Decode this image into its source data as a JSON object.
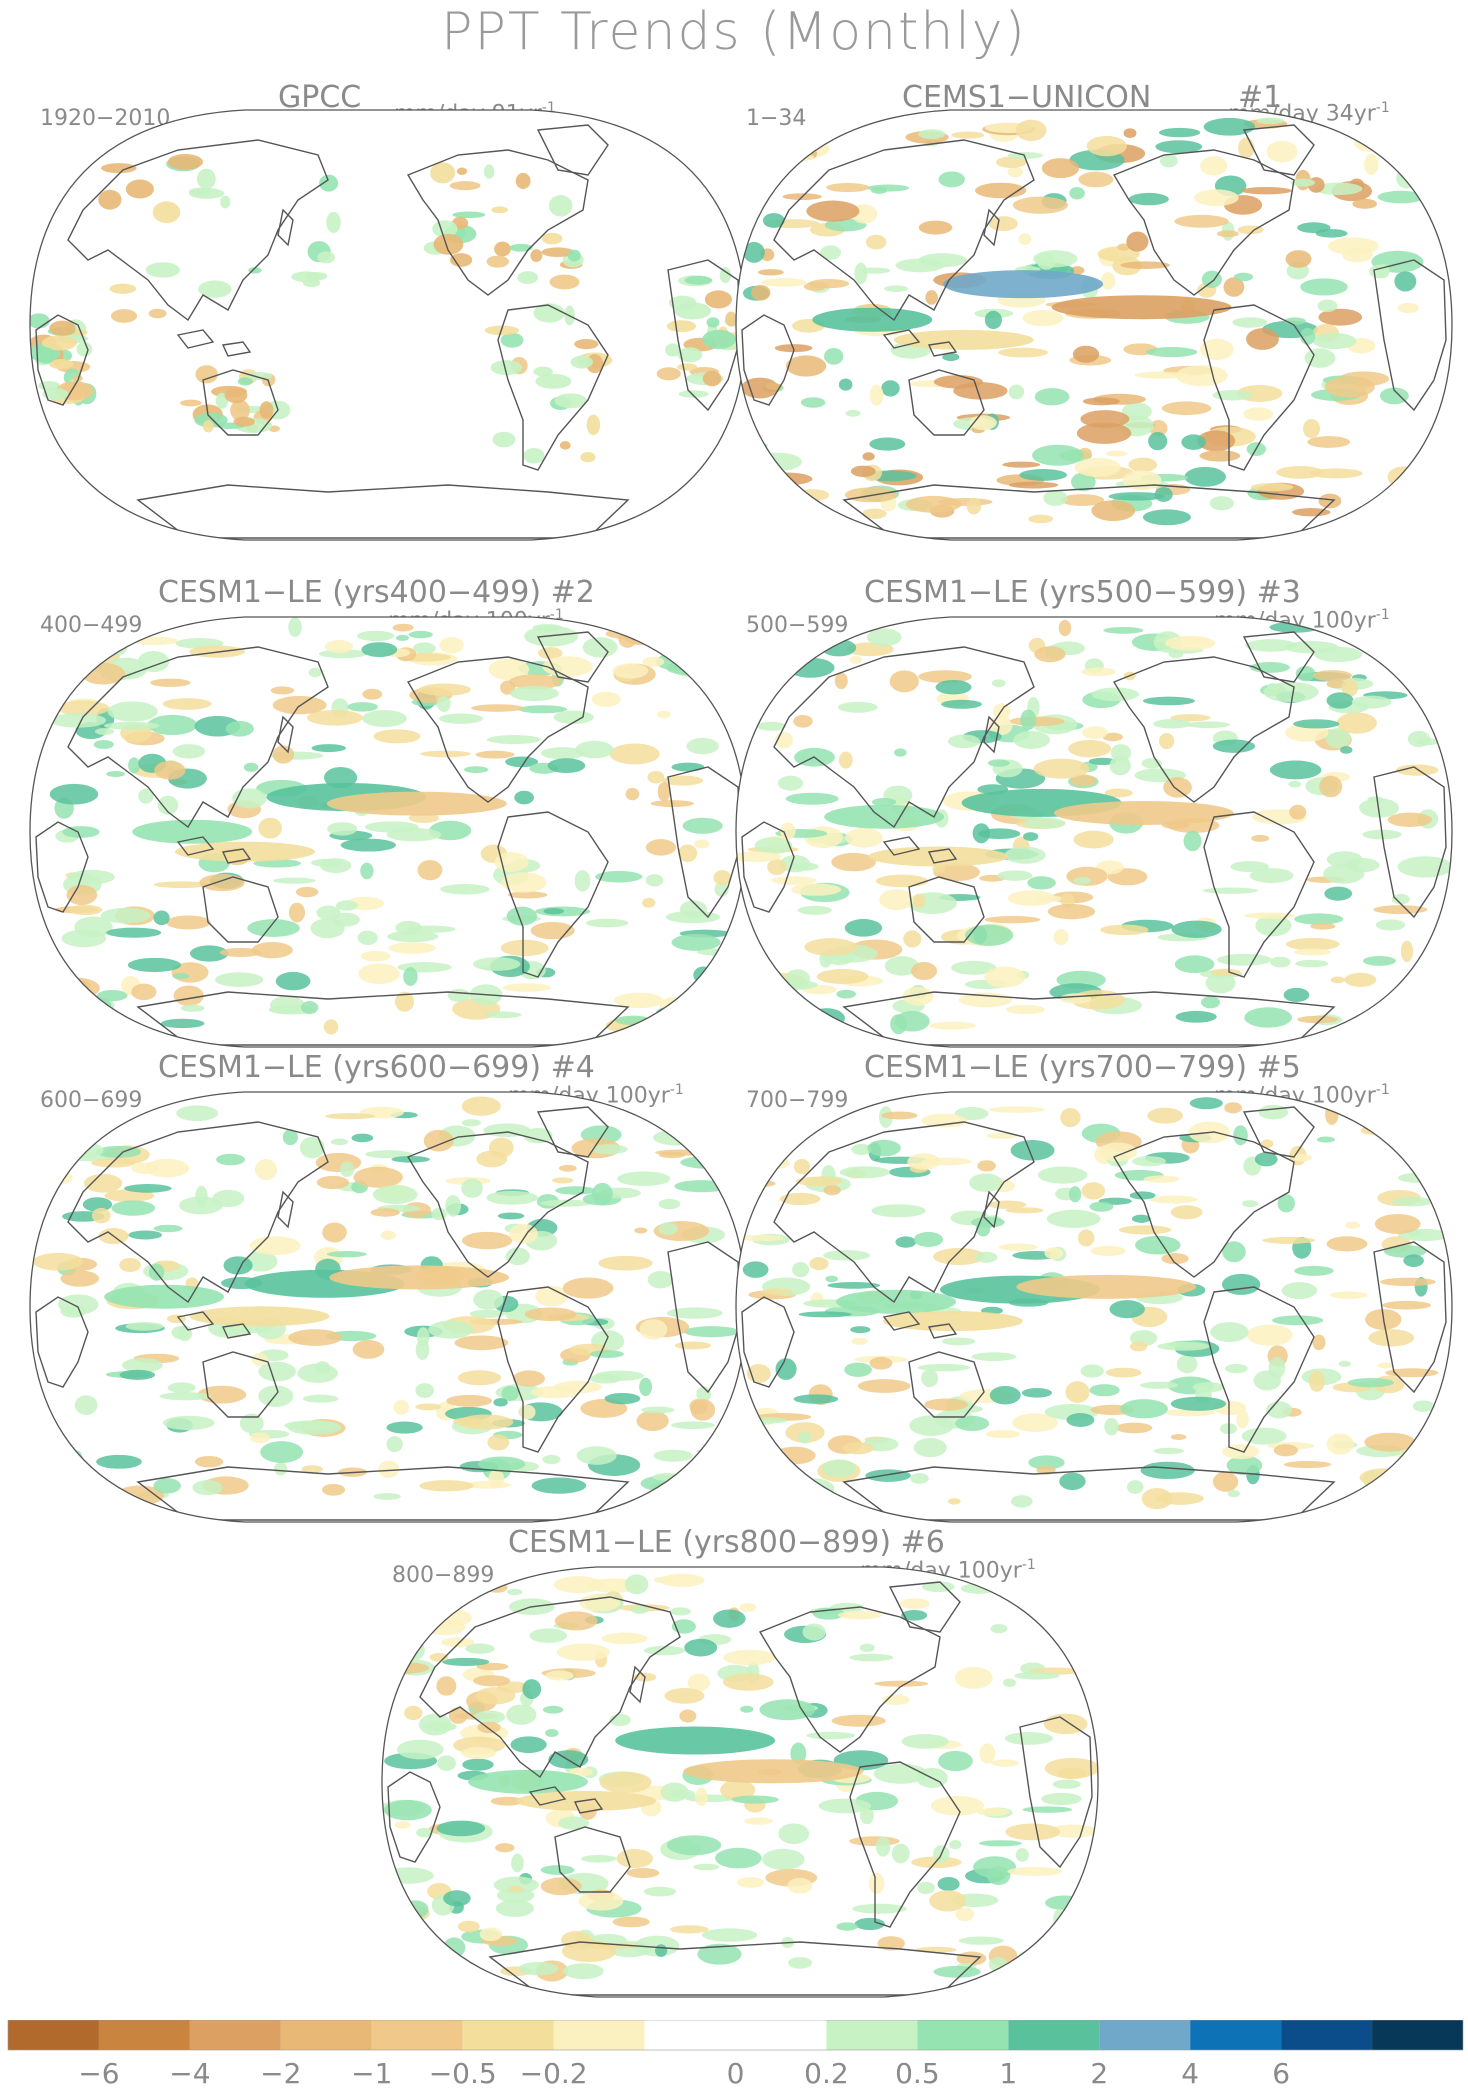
{
  "title": "PPT Trends (Monthly)",
  "panels": [
    {
      "title": "GPCC",
      "number": "",
      "years": "1920−2010",
      "units": "mm/day 91yr",
      "exp": "-1"
    },
    {
      "title": "CEMS1−UNICON",
      "number": "#1",
      "years": "1−34",
      "units": "mm/day 34yr",
      "exp": "-1"
    },
    {
      "title": "CESM1−LE (yrs400−499) #2",
      "number": "",
      "years": "400−499",
      "units": "mm/day 100yr",
      "exp": "-1"
    },
    {
      "title": "CESM1−LE (yrs500−599) #3",
      "number": "",
      "years": "500−599",
      "units": "mm/day 100yr",
      "exp": "-1"
    },
    {
      "title": "CESM1−LE (yrs600−699) #4",
      "number": "",
      "years": "600−699",
      "units": "mm/day 100yr",
      "exp": "-1"
    },
    {
      "title": "CESM1−LE (yrs700−799) #5",
      "number": "",
      "years": "700−799",
      "units": "mm/day 100yr",
      "exp": "-1"
    },
    {
      "title": "CESM1−LE (yrs800−899) #6",
      "number": "",
      "years": "800−899",
      "units": "mm/day 100yr",
      "exp": "-1"
    }
  ],
  "colorbar": {
    "labels": [
      "−6",
      "−4",
      "−2",
      "−1",
      "−0.5",
      "−0.2",
      "0",
      "0.2",
      "0.5",
      "1",
      "2",
      "4",
      "6"
    ],
    "colors": [
      "#b26a2c",
      "#c9843f",
      "#dca063",
      "#e8b877",
      "#f0c98a",
      "#f3de9c",
      "#fbf1c0",
      "#ffffff",
      "#ffffff",
      "#c7f2c4",
      "#95e3b0",
      "#59c29c",
      "#6fa8c9",
      "#0e72b6",
      "#0b4c8a",
      "#073857"
    ]
  }
}
